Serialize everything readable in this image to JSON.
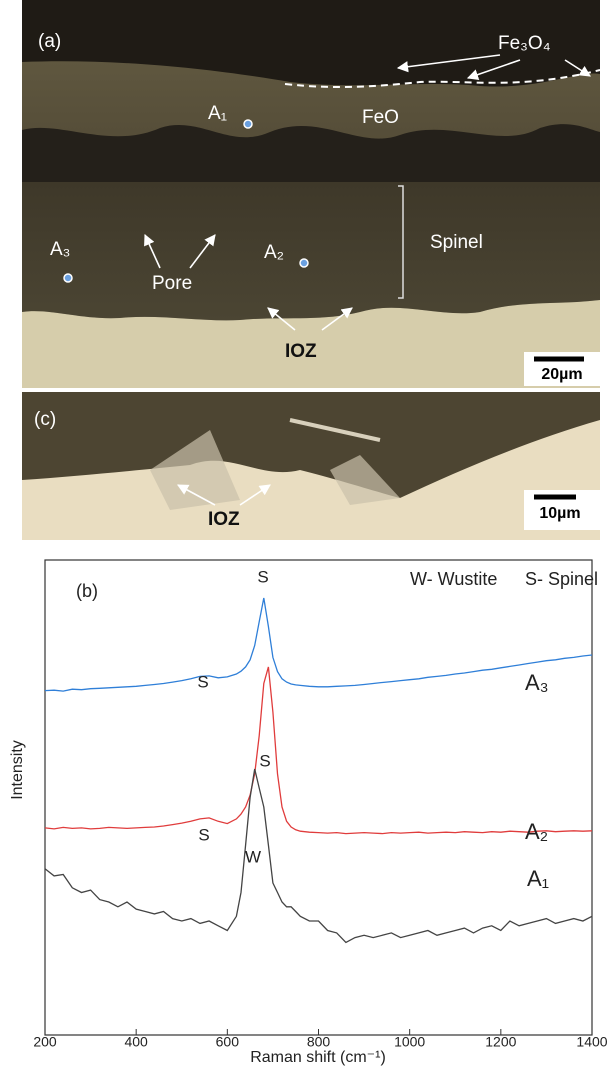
{
  "micrograph_a": {
    "label": "(a)",
    "fe3o4": "Fe₃O₄",
    "feo": "FeO",
    "points": [
      "A₁",
      "A₂",
      "A₃"
    ],
    "spinel": "Spinel",
    "pore": "Pore",
    "ioz": "IOZ",
    "scale_bar": "20µm"
  },
  "micrograph_c": {
    "label": "(c)",
    "ioz": "IOZ",
    "scale_bar": "10µm"
  },
  "chart_data": {
    "type": "line",
    "panel_label": "(b)",
    "key": [
      "W- Wustite",
      "S- Spinel"
    ],
    "xlabel": "Raman shift (cm⁻¹)",
    "ylabel": "Intensity",
    "xlim": [
      200,
      1400
    ],
    "xticks": [
      200,
      400,
      600,
      800,
      1000,
      1200,
      1400
    ],
    "ylim": [
      0,
      100
    ],
    "peak_labels": [
      "S",
      "S",
      "S",
      "S",
      "W"
    ],
    "x": [
      200,
      220,
      240,
      260,
      280,
      300,
      320,
      340,
      360,
      380,
      400,
      420,
      440,
      460,
      480,
      500,
      520,
      540,
      560,
      580,
      600,
      620,
      630,
      640,
      650,
      660,
      670,
      680,
      690,
      700,
      710,
      720,
      730,
      740,
      750,
      760,
      780,
      800,
      820,
      840,
      860,
      880,
      900,
      920,
      940,
      960,
      980,
      1000,
      1020,
      1040,
      1060,
      1080,
      1100,
      1120,
      1140,
      1160,
      1180,
      1200,
      1220,
      1240,
      1260,
      1280,
      1300,
      1320,
      1340,
      1360,
      1380,
      1400
    ],
    "series": [
      {
        "name": "A₃",
        "color": "#2f7fd8",
        "values": [
          72.5,
          72.6,
          72.4,
          72.8,
          72.7,
          72.9,
          73.0,
          73.1,
          73.2,
          73.3,
          73.4,
          73.6,
          73.8,
          74.0,
          74.3,
          74.6,
          75.0,
          75.5,
          75.6,
          75.2,
          75.4,
          76.0,
          76.6,
          77.5,
          79.0,
          82.0,
          87.0,
          92.0,
          86.0,
          79.5,
          76.5,
          75.0,
          74.3,
          73.9,
          73.7,
          73.6,
          73.4,
          73.3,
          73.3,
          73.4,
          73.5,
          73.6,
          73.8,
          74.0,
          74.2,
          74.4,
          74.6,
          74.8,
          75.0,
          75.3,
          75.5,
          75.7,
          76.0,
          76.2,
          76.5,
          76.8,
          77.0,
          77.3,
          77.6,
          77.9,
          78.2,
          78.5,
          78.8,
          79.0,
          79.3,
          79.5,
          79.8,
          80.0
        ]
      },
      {
        "name": "A₂",
        "color": "#e03c3c",
        "values": [
          43.6,
          43.4,
          43.7,
          43.5,
          43.6,
          43.4,
          43.5,
          43.7,
          43.6,
          43.5,
          43.6,
          43.7,
          43.8,
          44.0,
          44.3,
          44.6,
          45.0,
          45.5,
          45.7,
          45.0,
          44.5,
          45.5,
          46.5,
          48.0,
          50.5,
          55.0,
          63.0,
          74.0,
          77.5,
          68.0,
          55.0,
          48.0,
          45.0,
          43.8,
          43.2,
          42.9,
          42.7,
          42.6,
          42.5,
          42.6,
          42.4,
          42.5,
          42.6,
          42.5,
          42.4,
          42.6,
          42.5,
          42.6,
          42.7,
          42.5,
          42.6,
          42.7,
          42.6,
          42.8,
          42.7,
          42.6,
          42.8,
          42.7,
          42.9,
          42.8,
          42.7,
          42.9,
          43.0,
          42.8,
          42.9,
          43.0,
          42.9,
          43.0
        ]
      },
      {
        "name": "A₁",
        "color": "#444444",
        "values": [
          35,
          33.5,
          33.8,
          31,
          30,
          30.5,
          28.5,
          28,
          27,
          28,
          26.5,
          26,
          25.5,
          26,
          24.5,
          24,
          24.5,
          23.5,
          24,
          23,
          22,
          25,
          30,
          40,
          50,
          56,
          52,
          48,
          40,
          32,
          30,
          28,
          27,
          27,
          26,
          25,
          24,
          24,
          22,
          21.5,
          19.5,
          20.5,
          21,
          20.5,
          21,
          21.5,
          20.5,
          21,
          21.5,
          22,
          21,
          21.5,
          22,
          22.5,
          21.5,
          22.5,
          23,
          22,
          24,
          23,
          23.5,
          24,
          24.5,
          23.5,
          24,
          24.5,
          24,
          25
        ]
      }
    ]
  }
}
